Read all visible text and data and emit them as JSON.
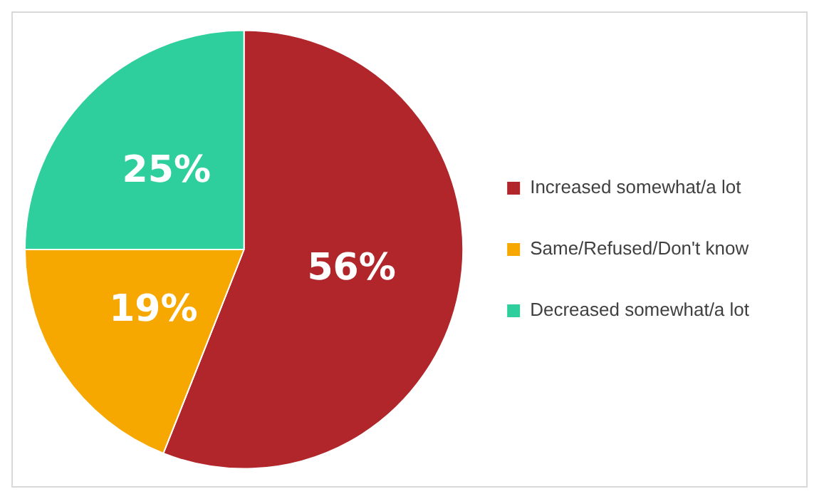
{
  "chart_data": {
    "type": "pie",
    "categories": [
      "Increased somewhat/a lot",
      "Same/Refused/Don't know",
      "Decreased somewhat/a lot"
    ],
    "values": [
      56,
      19,
      25
    ],
    "colors": [
      "#b0262b",
      "#f7a800",
      "#2ecf9d"
    ],
    "value_labels": [
      "56%",
      "19%",
      "25%"
    ],
    "legend": "right"
  }
}
